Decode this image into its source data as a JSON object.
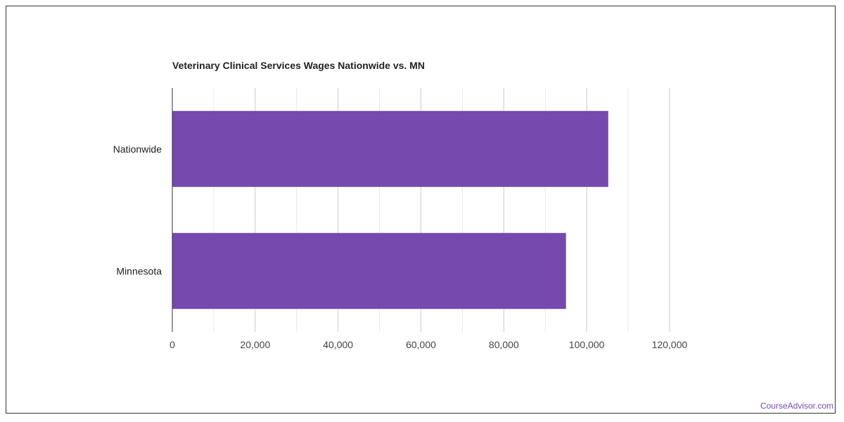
{
  "brand": {
    "text": "CourseAdvisor.com",
    "color": "#7a4bb0"
  },
  "chart_data": {
    "type": "bar",
    "orientation": "horizontal",
    "title": "Veterinary Clinical Services Wages Nationwide vs. MN",
    "categories": [
      "Nationwide",
      "Minnesota"
    ],
    "values": [
      105200,
      95000
    ],
    "xlim": [
      0,
      120000
    ],
    "xticks": [
      0,
      20000,
      40000,
      60000,
      80000,
      100000,
      120000
    ],
    "xtick_labels": [
      "0",
      "20,000",
      "40,000",
      "60,000",
      "80,000",
      "100,000",
      "120,000"
    ],
    "bar_color": "#7549ae",
    "grid": true,
    "legend": "none"
  }
}
